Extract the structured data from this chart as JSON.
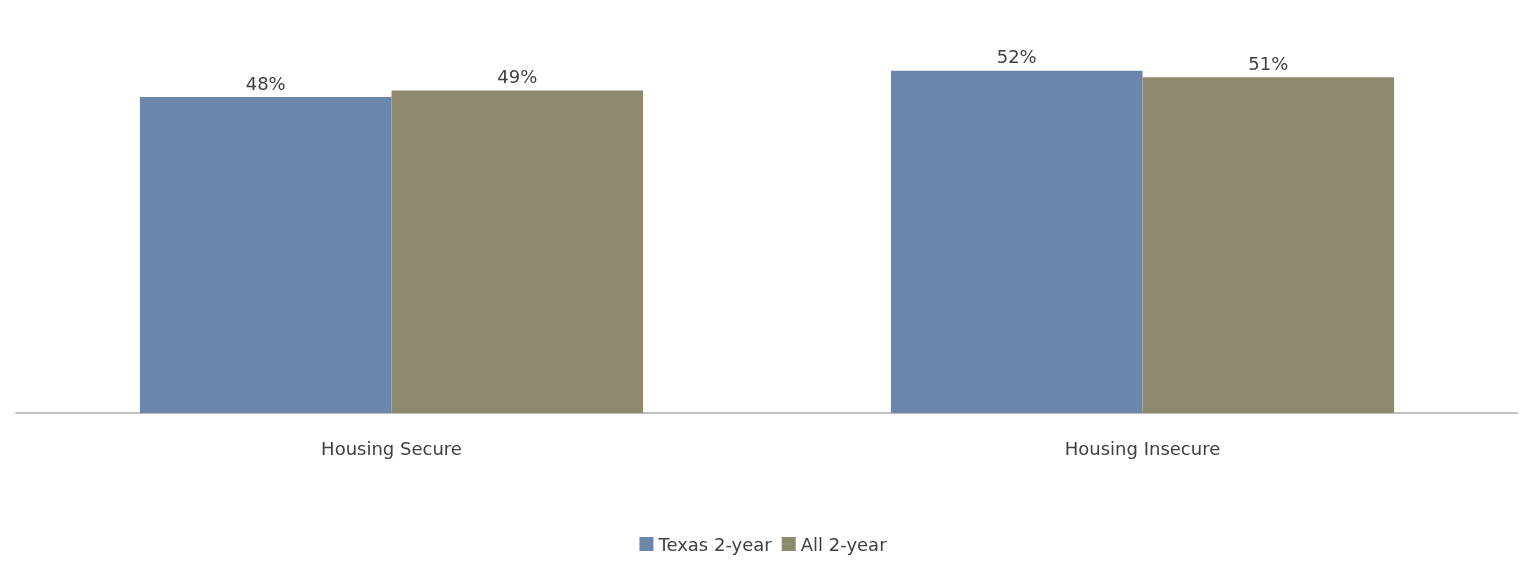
{
  "chart_data": {
    "type": "bar",
    "categories": [
      "Housing Secure",
      "Housing Insecure"
    ],
    "series": [
      {
        "name": "Texas 2-year",
        "color": "#6b87ab",
        "values": [
          48,
          52
        ],
        "value_labels": [
          "48%",
          "52%"
        ]
      },
      {
        "name": "All 2-year",
        "color": "#8f8a6d",
        "values": [
          49,
          51
        ],
        "value_labels": [
          "49%",
          "51%"
        ]
      }
    ],
    "tick_labels": "x",
    "legend": "bottom",
    "grid": false
  }
}
